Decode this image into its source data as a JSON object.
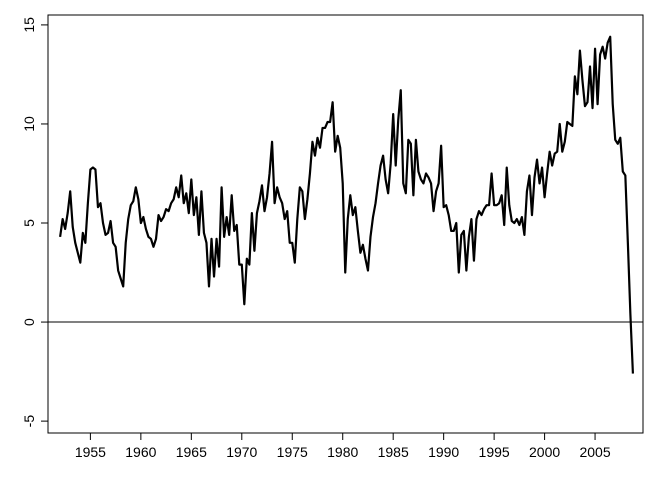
{
  "chart_data": {
    "type": "line",
    "x": [
      1952,
      1952.25,
      1952.5,
      1952.75,
      1953,
      1953.25,
      1953.5,
      1953.75,
      1954,
      1954.25,
      1954.5,
      1954.75,
      1955,
      1955.25,
      1955.5,
      1955.75,
      1956,
      1956.25,
      1956.5,
      1956.75,
      1957,
      1957.25,
      1957.5,
      1957.75,
      1958,
      1958.25,
      1958.5,
      1958.75,
      1959,
      1959.25,
      1959.5,
      1959.75,
      1960,
      1960.25,
      1960.5,
      1960.75,
      1961,
      1961.25,
      1961.5,
      1961.75,
      1962,
      1962.25,
      1962.5,
      1962.75,
      1963,
      1963.25,
      1963.5,
      1963.75,
      1964,
      1964.25,
      1964.5,
      1964.75,
      1965,
      1965.25,
      1965.5,
      1965.75,
      1966,
      1966.25,
      1966.5,
      1966.75,
      1967,
      1967.25,
      1967.5,
      1967.75,
      1968,
      1968.25,
      1968.5,
      1968.75,
      1969,
      1969.25,
      1969.5,
      1969.75,
      1970,
      1970.25,
      1970.5,
      1970.75,
      1971,
      1971.25,
      1971.5,
      1971.75,
      1972,
      1972.25,
      1972.5,
      1972.75,
      1973,
      1973.25,
      1973.5,
      1973.75,
      1974,
      1974.25,
      1974.5,
      1974.75,
      1975,
      1975.25,
      1975.5,
      1975.75,
      1976,
      1976.25,
      1976.5,
      1976.75,
      1977,
      1977.25,
      1977.5,
      1977.75,
      1978,
      1978.25,
      1978.5,
      1978.75,
      1979,
      1979.25,
      1979.5,
      1979.75,
      1980,
      1980.25,
      1980.5,
      1980.75,
      1981,
      1981.25,
      1981.5,
      1981.75,
      1982,
      1982.25,
      1982.5,
      1982.75,
      1983,
      1983.25,
      1983.5,
      1983.75,
      1984,
      1984.25,
      1984.5,
      1984.75,
      1985,
      1985.25,
      1985.5,
      1985.75,
      1986,
      1986.25,
      1986.5,
      1986.75,
      1987,
      1987.25,
      1987.5,
      1987.75,
      1988,
      1988.25,
      1988.5,
      1988.75,
      1989,
      1989.25,
      1989.5,
      1989.75,
      1990,
      1990.25,
      1990.5,
      1990.75,
      1991,
      1991.25,
      1991.5,
      1991.75,
      1992,
      1992.25,
      1992.5,
      1992.75,
      1993,
      1993.25,
      1993.5,
      1993.75,
      1994,
      1994.25,
      1994.5,
      1994.75,
      1995,
      1995.25,
      1995.5,
      1995.75,
      1996,
      1996.25,
      1996.5,
      1996.75,
      1997,
      1997.25,
      1997.5,
      1997.75,
      1998,
      1998.25,
      1998.5,
      1998.75,
      1999,
      1999.25,
      1999.5,
      1999.75,
      2000,
      2000.25,
      2000.5,
      2000.75,
      2001,
      2001.25,
      2001.5,
      2001.75,
      2002,
      2002.25,
      2002.5,
      2002.75,
      2003,
      2003.25,
      2003.5,
      2003.75,
      2004,
      2004.25,
      2004.5,
      2004.75,
      2005,
      2005.25,
      2005.5,
      2005.75,
      2006,
      2006.25,
      2006.5,
      2006.75,
      2007,
      2007.25,
      2007.5,
      2007.75,
      2008,
      2008.25,
      2008.5,
      2008.75
    ],
    "series": [
      {
        "color": "#000000",
        "values": [
          4.3,
          5.2,
          4.7,
          5.5,
          6.6,
          4.8,
          4.0,
          3.5,
          3.0,
          4.5,
          4.0,
          6.0,
          7.7,
          7.8,
          7.7,
          5.8,
          6.0,
          5.0,
          4.4,
          4.5,
          5.1,
          4.0,
          3.8,
          2.6,
          2.2,
          1.8,
          4.0,
          5.2,
          5.9,
          6.1,
          6.8,
          6.2,
          5.0,
          5.3,
          4.7,
          4.3,
          4.2,
          3.8,
          4.2,
          5.4,
          5.1,
          5.3,
          5.7,
          5.6,
          6.0,
          6.2,
          6.8,
          6.3,
          7.4,
          6.0,
          6.5,
          5.5,
          7.2,
          5.4,
          6.3,
          4.4,
          6.6,
          4.5,
          4.0,
          1.8,
          4.2,
          2.3,
          4.2,
          2.8,
          6.8,
          4.3,
          5.3,
          4.4,
          6.4,
          4.6,
          4.9,
          2.9,
          2.9,
          0.9,
          3.2,
          2.9,
          5.5,
          3.6,
          5.5,
          6.1,
          6.9,
          5.6,
          6.3,
          7.5,
          9.1,
          6.0,
          6.8,
          6.3,
          6.0,
          5.2,
          5.6,
          4.0,
          4.0,
          3.0,
          5.2,
          6.8,
          6.6,
          5.2,
          6.2,
          7.5,
          9.1,
          8.4,
          9.3,
          8.8,
          9.8,
          9.8,
          10.1,
          10.1,
          11.1,
          8.6,
          9.4,
          8.8,
          7.0,
          2.5,
          5.2,
          6.4,
          5.4,
          5.8,
          4.6,
          3.5,
          3.9,
          3.2,
          2.6,
          4.3,
          5.3,
          6.0,
          7.0,
          7.9,
          8.4,
          7.2,
          6.5,
          8.0,
          10.5,
          7.9,
          10.2,
          11.7,
          7.0,
          6.5,
          9.2,
          9.0,
          6.4,
          9.2,
          7.6,
          7.2,
          7.0,
          7.5,
          7.3,
          7.0,
          5.6,
          6.6,
          7.0,
          8.9,
          5.8,
          5.9,
          5.4,
          4.6,
          4.6,
          5.0,
          2.5,
          4.4,
          4.6,
          2.6,
          4.3,
          5.2,
          3.1,
          5.2,
          5.6,
          5.4,
          5.7,
          5.9,
          5.9,
          7.5,
          5.9,
          5.9,
          6.0,
          6.4,
          4.9,
          7.8,
          5.9,
          5.1,
          5.0,
          5.2,
          4.9,
          5.3,
          4.4,
          6.6,
          7.4,
          5.4,
          7.3,
          8.2,
          7.0,
          7.8,
          6.3,
          7.5,
          8.6,
          7.9,
          8.5,
          8.6,
          10.0,
          8.6,
          9.1,
          10.1,
          10.0,
          9.9,
          12.4,
          11.5,
          13.7,
          12.2,
          10.9,
          11.1,
          12.9,
          10.8,
          13.8,
          11.0,
          13.5,
          13.9,
          13.3,
          14.1,
          14.4,
          11.0,
          9.2,
          9.0,
          9.3,
          7.6,
          7.4,
          4.0,
          0.4,
          -2.6
        ]
      }
    ],
    "xlim": [
      1950.8,
      2009.75
    ],
    "ylim": [
      -5.6,
      15.5
    ],
    "xticks": [
      1955,
      1960,
      1965,
      1970,
      1975,
      1980,
      1985,
      1990,
      1995,
      2000,
      2005
    ],
    "yticks": [
      -5,
      0,
      5,
      10,
      15
    ],
    "hline": 0
  }
}
